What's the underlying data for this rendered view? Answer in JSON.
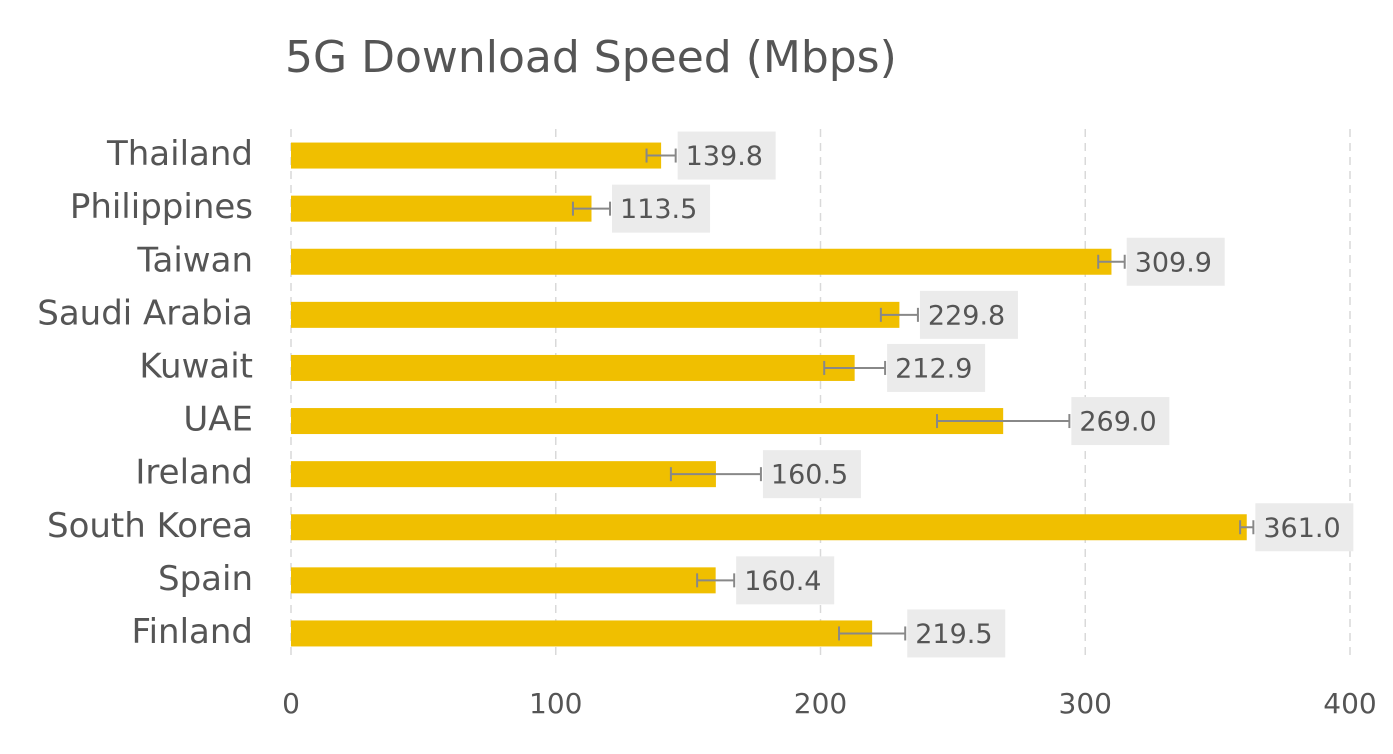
{
  "chart_data": {
    "type": "bar",
    "orientation": "horizontal",
    "title": "5G Download Speed (Mbps)",
    "categories": [
      "Thailand",
      "Philippines",
      "Taiwan",
      "Saudi Arabia",
      "Kuwait",
      "UAE",
      "Ireland",
      "South Korea",
      "Spain",
      "Finland"
    ],
    "values": [
      139.8,
      113.5,
      309.9,
      229.8,
      212.9,
      269.0,
      160.5,
      361.0,
      160.4,
      219.5
    ],
    "value_labels": [
      "139.8",
      "113.5",
      "309.9",
      "229.8",
      "212.9",
      "269.0",
      "160.5",
      "361.0",
      "160.4",
      "219.5"
    ],
    "errors": [
      5.5,
      7,
      5,
      7,
      11.5,
      25,
      17,
      2.5,
      7,
      12.5
    ],
    "color": "#f0bf00",
    "error_color": "#888888",
    "xlim": [
      0,
      400
    ],
    "xticks": [
      0,
      100,
      200,
      300,
      400
    ],
    "grid": true
  }
}
